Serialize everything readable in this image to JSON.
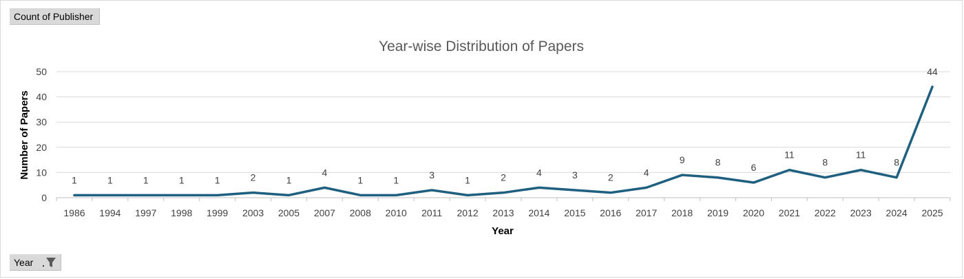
{
  "pivot": {
    "value_field": "Count of Publisher",
    "axis_field": "Year",
    "filter_icon": "funnel-filter-icon"
  },
  "colors": {
    "line": "#1f5f7f",
    "grid": "#d9d9d9"
  },
  "chart_data": {
    "type": "line",
    "title": "Year-wise Distribution of Papers",
    "xlabel": "Year",
    "ylabel": "Number of Papers",
    "ylim": [
      0,
      50
    ],
    "yticks": [
      0,
      10,
      20,
      30,
      40,
      50
    ],
    "grid": true,
    "legend": "none",
    "categories": [
      "1986",
      "1994",
      "1997",
      "1998",
      "1999",
      "2003",
      "2005",
      "2007",
      "2008",
      "2010",
      "2011",
      "2012",
      "2013",
      "2014",
      "2015",
      "2016",
      "2017",
      "2018",
      "2019",
      "2020",
      "2021",
      "2022",
      "2023",
      "2024",
      "2025"
    ],
    "series": [
      {
        "values": [
          1,
          1,
          1,
          1,
          1,
          2,
          1,
          4,
          1,
          1,
          3,
          1,
          2,
          4,
          3,
          2,
          4,
          9,
          8,
          6,
          11,
          8,
          11,
          8,
          44
        ]
      }
    ]
  }
}
